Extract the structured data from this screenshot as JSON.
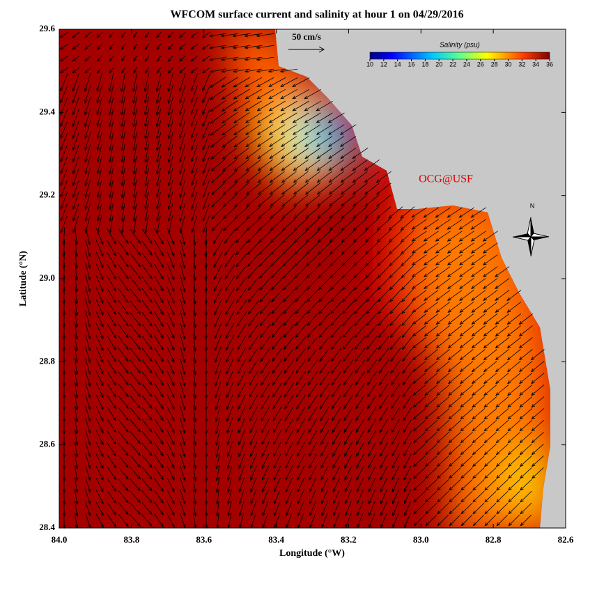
{
  "map": {
    "title": "WFCOM surface current and salinity at hour 1 on 04/29/2016",
    "x_label": "Longitude (°W)",
    "y_label": "Latitude (°N)",
    "xlim": [
      84.0,
      82.6
    ],
    "xticks": [
      {
        "value": 84.0,
        "label": "84.0"
      },
      83.8,
      83.6,
      83.4,
      83.2,
      {
        "value": 83.0,
        "label": "83.0"
      },
      82.8,
      82.6
    ],
    "ylim": [
      28.4,
      29.6
    ],
    "yticks": [
      28.4,
      28.6,
      28.8,
      {
        "value": 29.0,
        "label": "29.0"
      },
      29.2,
      29.4,
      29.6
    ],
    "scale_label": "50 cm/s",
    "watermark": "OCG@USF",
    "compass_label": "N",
    "colorbar": {
      "title": "Salinity (psu)",
      "lim": [
        10,
        36
      ],
      "ticks": [
        10,
        12,
        14,
        16,
        18,
        20,
        22,
        24,
        26,
        28,
        30,
        32,
        34,
        36
      ]
    }
  }
}
